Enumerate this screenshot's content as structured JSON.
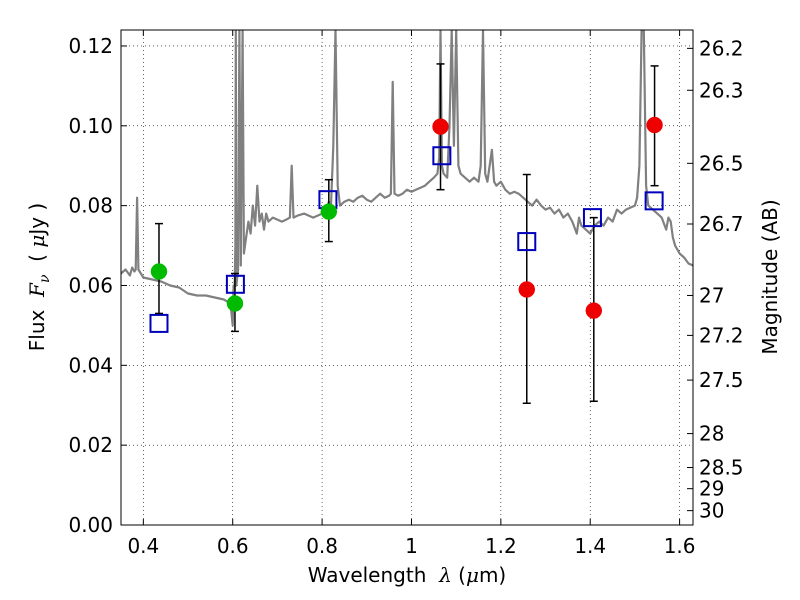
{
  "chart_data": {
    "type": "scatter",
    "xlabel": {
      "prefix": "Wavelength  ",
      "symbol": "λ",
      "unit_open": " (",
      "unit_mu": "μ",
      "unit_close": "m)"
    },
    "ylabel": {
      "prefix": "Flux  ",
      "symbol": "F",
      "subscript": "ν",
      "unit_open": "  ( ",
      "unit_mu": "μ",
      "unit_close": "Jy )"
    },
    "y2label": "Magnitude (AB)",
    "xlim": [
      0.35,
      1.63
    ],
    "ylim": [
      0.0,
      0.124
    ],
    "x_ticks": [
      {
        "value": 0.4,
        "label": "0.4"
      },
      {
        "value": 0.6,
        "label": "0.6"
      },
      {
        "value": 0.8,
        "label": "0.8"
      },
      {
        "value": 1.0,
        "label": "1"
      },
      {
        "value": 1.2,
        "label": "1.2"
      },
      {
        "value": 1.4,
        "label": "1.4"
      },
      {
        "value": 1.6,
        "label": "1.6"
      }
    ],
    "y_ticks": [
      {
        "value": 0.0,
        "label": "0.00"
      },
      {
        "value": 0.02,
        "label": "0.02"
      },
      {
        "value": 0.04,
        "label": "0.04"
      },
      {
        "value": 0.06,
        "label": "0.06"
      },
      {
        "value": 0.08,
        "label": "0.08"
      },
      {
        "value": 0.1,
        "label": "0.10"
      },
      {
        "value": 0.12,
        "label": "0.12"
      }
    ],
    "y2_ticks": [
      {
        "flux": 0.1194,
        "label": "26.2"
      },
      {
        "flux": 0.1089,
        "label": "26.3"
      },
      {
        "flux": 0.0906,
        "label": "26.5"
      },
      {
        "flux": 0.0754,
        "label": "26.7"
      },
      {
        "flux": 0.0575,
        "label": "27"
      },
      {
        "flux": 0.0475,
        "label": "27.2"
      },
      {
        "flux": 0.0363,
        "label": "27.5"
      },
      {
        "flux": 0.0229,
        "label": "28"
      },
      {
        "flux": 0.0144,
        "label": "28.5"
      },
      {
        "flux": 0.0091,
        "label": "29"
      },
      {
        "flux": 0.0036,
        "label": "30"
      }
    ],
    "grid": true,
    "colors": {
      "spectrum": "#808080",
      "observed_green": "#00bb00",
      "observed_red": "#ee0000",
      "model": "#0000bb",
      "errorbar": "#000000"
    },
    "series": [
      {
        "marker": "circle-green",
        "points": [
          {
            "x": 0.435,
            "y": 0.0635,
            "yerr_low": 0.053,
            "yerr_high": 0.0755
          },
          {
            "x": 0.605,
            "y": 0.0555,
            "yerr_low": 0.0485,
            "yerr_high": 0.063
          },
          {
            "x": 0.815,
            "y": 0.0785,
            "yerr_low": 0.071,
            "yerr_high": 0.0865
          }
        ]
      },
      {
        "marker": "circle-red",
        "points": [
          {
            "x": 1.065,
            "y": 0.0998,
            "yerr_low": 0.084,
            "yerr_high": 0.1155
          },
          {
            "x": 1.258,
            "y": 0.059,
            "yerr_low": 0.0305,
            "yerr_high": 0.0878
          },
          {
            "x": 1.408,
            "y": 0.0537,
            "yerr_low": 0.031,
            "yerr_high": 0.077
          },
          {
            "x": 1.544,
            "y": 0.1002,
            "yerr_low": 0.085,
            "yerr_high": 0.115
          }
        ]
      },
      {
        "marker": "square-open-blue",
        "points": [
          {
            "x": 0.435,
            "y": 0.0505
          },
          {
            "x": 0.606,
            "y": 0.0603
          },
          {
            "x": 0.813,
            "y": 0.0815
          },
          {
            "x": 1.068,
            "y": 0.0925
          },
          {
            "x": 1.258,
            "y": 0.071
          },
          {
            "x": 1.405,
            "y": 0.077
          },
          {
            "x": 1.543,
            "y": 0.0812
          }
        ]
      },
      {
        "marker": "line-gray",
        "points": [
          [
            0.35,
            0.063
          ],
          [
            0.36,
            0.064
          ],
          [
            0.37,
            0.0625
          ],
          [
            0.375,
            0.0645
          ],
          [
            0.38,
            0.0635
          ],
          [
            0.383,
            0.064
          ],
          [
            0.386,
            0.082
          ],
          [
            0.389,
            0.064
          ],
          [
            0.4,
            0.062
          ],
          [
            0.42,
            0.0615
          ],
          [
            0.44,
            0.061
          ],
          [
            0.46,
            0.06
          ],
          [
            0.48,
            0.0595
          ],
          [
            0.5,
            0.058
          ],
          [
            0.52,
            0.0575
          ],
          [
            0.54,
            0.0575
          ],
          [
            0.56,
            0.057
          ],
          [
            0.58,
            0.0565
          ],
          [
            0.595,
            0.0555
          ],
          [
            0.6,
            0.05
          ],
          [
            0.602,
            0.06
          ],
          [
            0.604,
            0.058
          ],
          [
            0.606,
            0.07
          ],
          [
            0.607,
            0.124
          ],
          [
            0.608,
            0.06
          ],
          [
            0.612,
            0.064
          ],
          [
            0.615,
            0.124
          ],
          [
            0.618,
            0.065
          ],
          [
            0.622,
            0.124
          ],
          [
            0.625,
            0.068
          ],
          [
            0.63,
            0.072
          ],
          [
            0.635,
            0.076
          ],
          [
            0.64,
            0.073
          ],
          [
            0.645,
            0.08
          ],
          [
            0.65,
            0.075
          ],
          [
            0.655,
            0.085
          ],
          [
            0.66,
            0.076
          ],
          [
            0.665,
            0.078
          ],
          [
            0.67,
            0.074
          ],
          [
            0.675,
            0.078
          ],
          [
            0.68,
            0.076
          ],
          [
            0.69,
            0.077
          ],
          [
            0.7,
            0.0765
          ],
          [
            0.71,
            0.076
          ],
          [
            0.72,
            0.0765
          ],
          [
            0.728,
            0.077
          ],
          [
            0.732,
            0.09
          ],
          [
            0.736,
            0.077
          ],
          [
            0.745,
            0.0775
          ],
          [
            0.76,
            0.078
          ],
          [
            0.78,
            0.077
          ],
          [
            0.8,
            0.078
          ],
          [
            0.81,
            0.079
          ],
          [
            0.815,
            0.081
          ],
          [
            0.82,
            0.08
          ],
          [
            0.825,
            0.095
          ],
          [
            0.83,
            0.124
          ],
          [
            0.835,
            0.085
          ],
          [
            0.84,
            0.08
          ],
          [
            0.85,
            0.081
          ],
          [
            0.86,
            0.0815
          ],
          [
            0.87,
            0.081
          ],
          [
            0.88,
            0.082
          ],
          [
            0.89,
            0.0825
          ],
          [
            0.9,
            0.0815
          ],
          [
            0.91,
            0.081
          ],
          [
            0.92,
            0.082
          ],
          [
            0.93,
            0.083
          ],
          [
            0.94,
            0.082
          ],
          [
            0.95,
            0.0825
          ],
          [
            0.954,
            0.083
          ],
          [
            0.958,
            0.111
          ],
          [
            0.962,
            0.083
          ],
          [
            0.97,
            0.0825
          ],
          [
            0.98,
            0.083
          ],
          [
            0.99,
            0.084
          ],
          [
            1.0,
            0.0835
          ],
          [
            1.01,
            0.084
          ],
          [
            1.02,
            0.0845
          ],
          [
            1.03,
            0.085
          ],
          [
            1.04,
            0.086
          ],
          [
            1.05,
            0.087
          ],
          [
            1.058,
            0.088
          ],
          [
            1.062,
            0.092
          ],
          [
            1.065,
            0.124
          ],
          [
            1.068,
            0.09
          ],
          [
            1.072,
            0.088
          ],
          [
            1.08,
            0.087
          ],
          [
            1.085,
            0.1
          ],
          [
            1.09,
            0.124
          ],
          [
            1.095,
            0.095
          ],
          [
            1.1,
            0.124
          ],
          [
            1.105,
            0.09
          ],
          [
            1.11,
            0.088
          ],
          [
            1.12,
            0.087
          ],
          [
            1.13,
            0.086
          ],
          [
            1.14,
            0.087
          ],
          [
            1.15,
            0.086
          ],
          [
            1.155,
            0.09
          ],
          [
            1.16,
            0.124
          ],
          [
            1.165,
            0.088
          ],
          [
            1.17,
            0.086
          ],
          [
            1.18,
            0.094
          ],
          [
            1.185,
            0.086
          ],
          [
            1.19,
            0.085
          ],
          [
            1.2,
            0.086
          ],
          [
            1.21,
            0.084
          ],
          [
            1.22,
            0.083
          ],
          [
            1.23,
            0.0835
          ],
          [
            1.24,
            0.083
          ],
          [
            1.25,
            0.082
          ],
          [
            1.26,
            0.081
          ],
          [
            1.27,
            0.08
          ],
          [
            1.28,
            0.0815
          ],
          [
            1.29,
            0.08
          ],
          [
            1.3,
            0.079
          ],
          [
            1.31,
            0.0795
          ],
          [
            1.32,
            0.078
          ],
          [
            1.33,
            0.079
          ],
          [
            1.34,
            0.077
          ],
          [
            1.35,
            0.078
          ],
          [
            1.36,
            0.076
          ],
          [
            1.37,
            0.073
          ],
          [
            1.375,
            0.077
          ],
          [
            1.38,
            0.075
          ],
          [
            1.39,
            0.074
          ],
          [
            1.4,
            0.073
          ],
          [
            1.41,
            0.075
          ],
          [
            1.42,
            0.076
          ],
          [
            1.43,
            0.075
          ],
          [
            1.44,
            0.077
          ],
          [
            1.45,
            0.076
          ],
          [
            1.46,
            0.079
          ],
          [
            1.47,
            0.078
          ],
          [
            1.48,
            0.079
          ],
          [
            1.49,
            0.0795
          ],
          [
            1.5,
            0.08
          ],
          [
            1.505,
            0.082
          ],
          [
            1.51,
            0.09
          ],
          [
            1.515,
            0.124
          ],
          [
            1.52,
            0.124
          ],
          [
            1.525,
            0.085
          ],
          [
            1.53,
            0.08
          ],
          [
            1.54,
            0.079
          ],
          [
            1.55,
            0.078
          ],
          [
            1.56,
            0.077
          ],
          [
            1.57,
            0.074
          ],
          [
            1.575,
            0.077
          ],
          [
            1.58,
            0.076
          ],
          [
            1.585,
            0.072
          ],
          [
            1.59,
            0.07
          ],
          [
            1.595,
            0.069
          ],
          [
            1.6,
            0.068
          ],
          [
            1.61,
            0.067
          ],
          [
            1.62,
            0.0655
          ],
          [
            1.63,
            0.065
          ]
        ]
      }
    ]
  }
}
